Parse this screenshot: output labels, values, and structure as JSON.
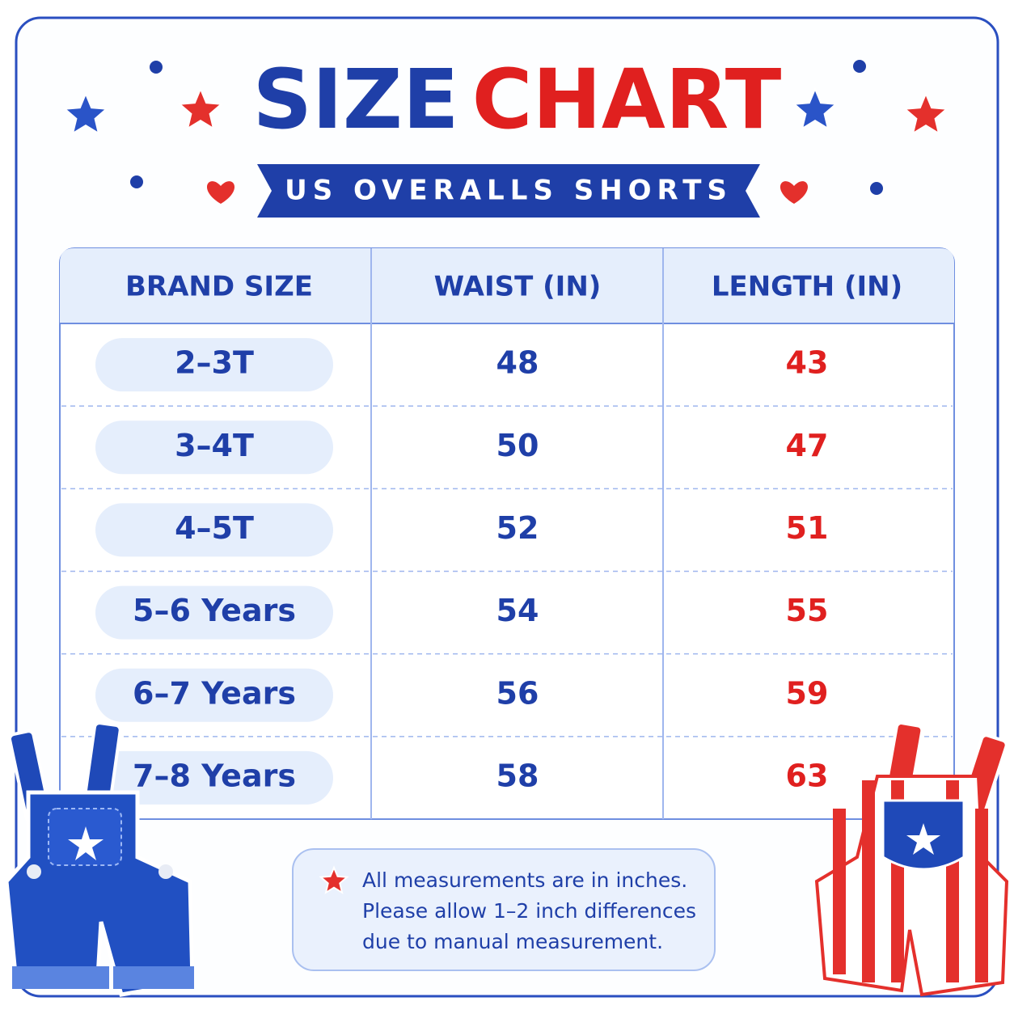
{
  "header": {
    "title": [
      "SIZE",
      "CHART"
    ],
    "subtitle": "US OVERALLS SHORTS"
  },
  "table": {
    "columns": [
      "BRAND SIZE",
      "WAIST (IN)",
      "LENGTH (IN)"
    ],
    "rows": [
      [
        "2–3T",
        48,
        43
      ],
      [
        "3–4T",
        50,
        47
      ],
      [
        "4–5T",
        52,
        51
      ],
      [
        "5–6 Years",
        54,
        55
      ],
      [
        "6–7 Years",
        56,
        59
      ],
      [
        "7–8 Years",
        58,
        63
      ]
    ]
  },
  "note": {
    "lines": [
      "All measurements are in inches.",
      "Please allow 1–2 inch differences",
      "due to manual measurement."
    ]
  }
}
